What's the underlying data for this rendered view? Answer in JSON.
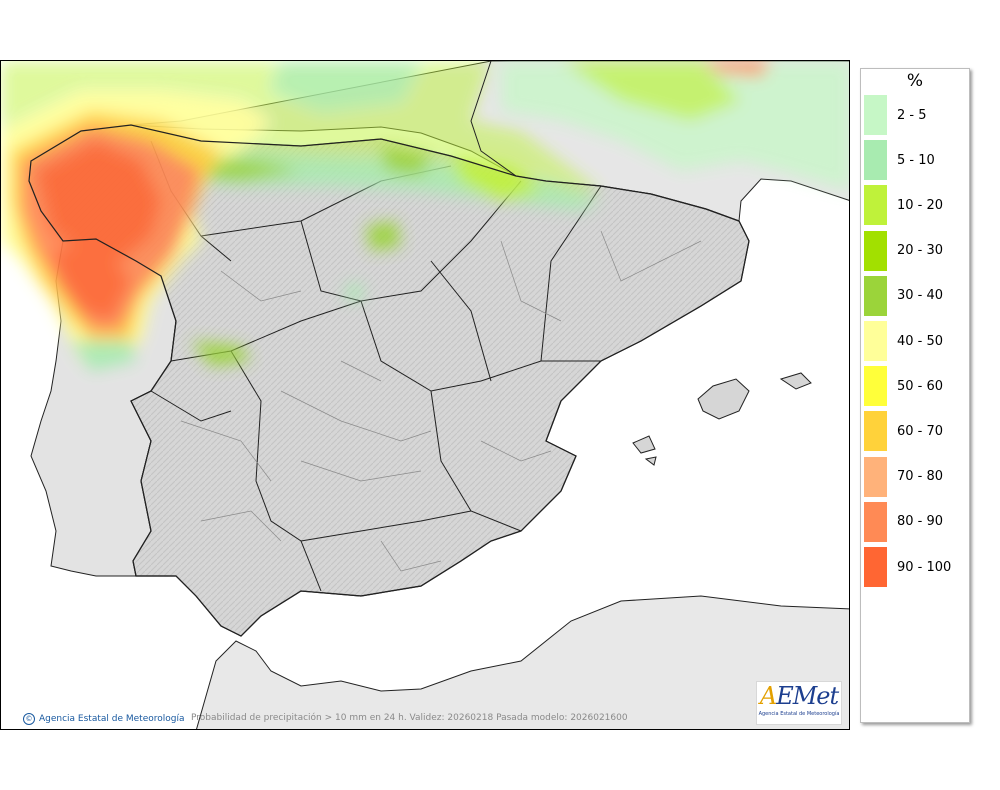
{
  "legend": {
    "unit": "%",
    "classes": [
      {
        "label": "2 - 5",
        "color": "#c6f7c6"
      },
      {
        "label": "5 - 10",
        "color": "#a8ebb0"
      },
      {
        "label": "10 - 20",
        "color": "#bff23a"
      },
      {
        "label": "20 - 30",
        "color": "#a2e000"
      },
      {
        "label": "30 - 40",
        "color": "#9bd43a"
      },
      {
        "label": "40 - 50",
        "color": "#ffff99"
      },
      {
        "label": "50 - 60",
        "color": "#ffff3a"
      },
      {
        "label": "60 - 70",
        "color": "#ffd23a"
      },
      {
        "label": "70 - 80",
        "color": "#ffb27a"
      },
      {
        "label": "80 - 90",
        "color": "#ff8a55"
      },
      {
        "label": "90 - 100",
        "color": "#ff6633"
      }
    ]
  },
  "footer": {
    "credit": "Agencia Estatal de Meteorología",
    "caption": "Probabilidad de precipitación > 10 mm en 24 h. Validez: 20260218 Pasada modelo: 2026021600"
  },
  "logo": {
    "brand": "AEMet",
    "subtitle": "Agencia Estatal de Meteorología"
  },
  "colors": {
    "sea": "#ffffff",
    "land": "#d9d9d9",
    "land_foreign": "#e6e6e6",
    "border": "#222222",
    "province_border": "#8a8a8a"
  }
}
